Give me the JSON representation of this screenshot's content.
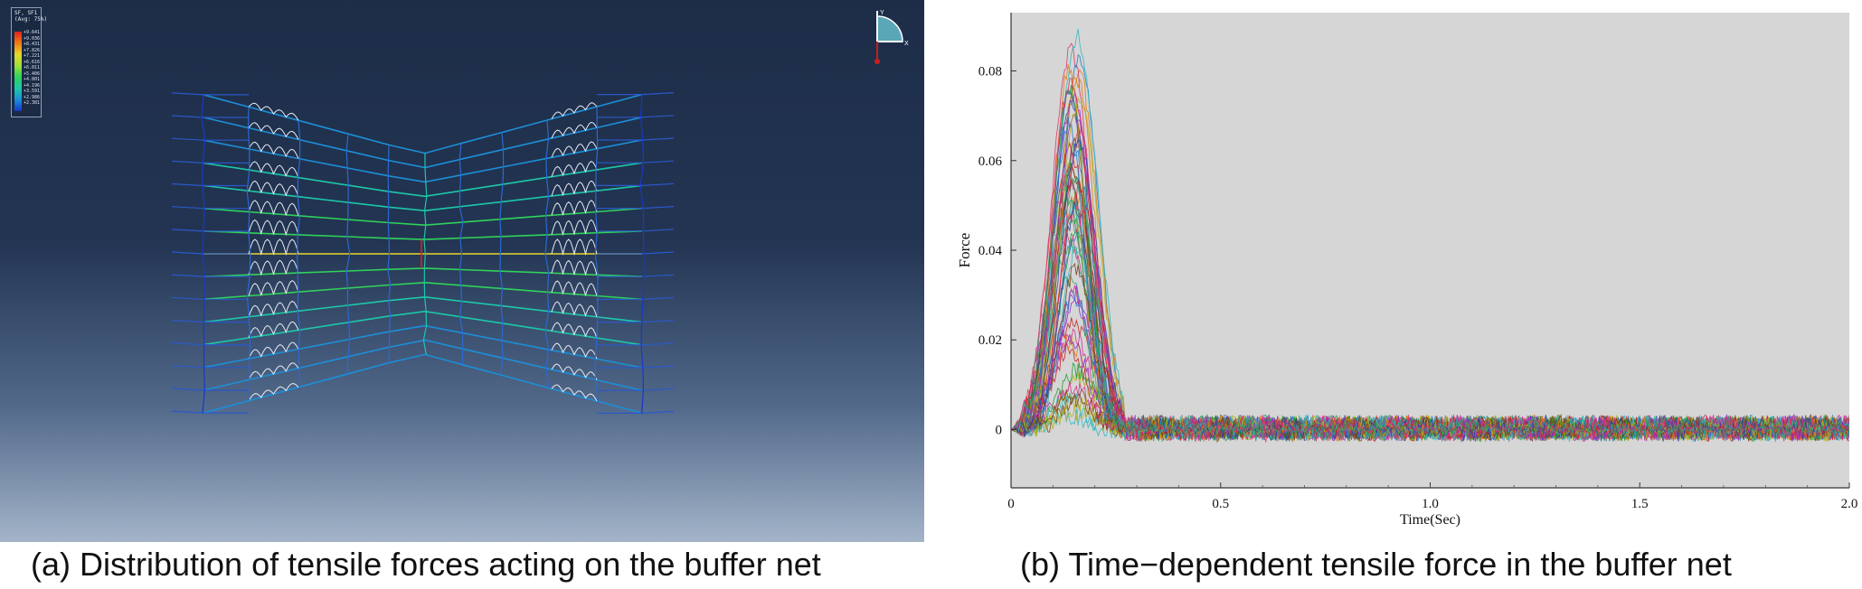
{
  "panel_a": {
    "legend_title": "SF, SF1\n(Avg: 75%)",
    "legend_values": [
      "+9.641e+04",
      "+9.036e+04",
      "+8.431e+04",
      "+7.826e+04",
      "+7.221e+04",
      "+6.616e+04",
      "+6.011e+04",
      "+5.406e+04",
      "+4.801e+04",
      "+4.196e+04",
      "+3.591e+04",
      "+2.986e+04",
      "+2.381e+04"
    ],
    "triad_labels": {
      "y": "Y",
      "x": "X"
    },
    "colors": {
      "low": "#1838c8",
      "mid": "#2fd25a",
      "high": "#e02020",
      "spring": "#e8ecf2"
    }
  },
  "captions": {
    "a": "(a) Distribution of tensile forces acting on the buffer net",
    "b": "(b) Time−dependent tensile force in the buffer net"
  },
  "chart_data": {
    "type": "line",
    "title": "",
    "xlabel": "Time(Sec)",
    "ylabel": "Force",
    "xlim": [
      0,
      2.0
    ],
    "ylim": [
      -0.013,
      0.093
    ],
    "xticks": [
      0,
      0.5,
      1.0,
      1.5,
      2.0
    ],
    "xtick_labels": [
      "0",
      "0.5",
      "1.0",
      "1.5",
      "2.0"
    ],
    "yticks": [
      0,
      0.02,
      0.04,
      0.06,
      0.08
    ],
    "ytick_labels": [
      "0",
      "0.02",
      "0.04",
      "0.06",
      "0.08"
    ],
    "grid": false,
    "background": "#d6d6d6",
    "series_count": 60,
    "peak_time": 0.15,
    "peak_values_max": 0.089,
    "pulse_end": 0.27,
    "steady_noise_amplitude": 0.003
  }
}
